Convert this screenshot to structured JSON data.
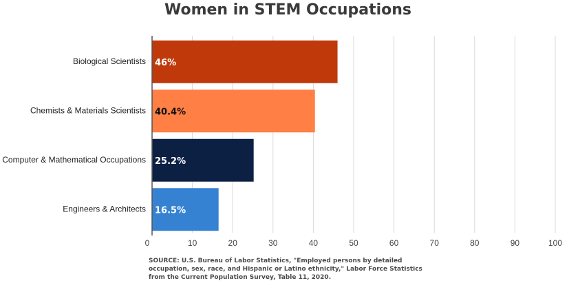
{
  "chart_data": {
    "type": "bar",
    "orientation": "horizontal",
    "title": "Women in STEM Occupations",
    "categories": [
      "Biological Scientists",
      "Chemists & Materials Scientists",
      "Computer & Mathematical Occupations",
      "Engineers & Architects"
    ],
    "values": [
      46,
      40.4,
      25.2,
      16.5
    ],
    "value_labels": [
      "46%",
      "40.4%",
      "25.2%",
      "16.5%"
    ],
    "bar_colors": [
      "#c0390b",
      "#ff7f45",
      "#0c2044",
      "#3582d3"
    ],
    "value_label_colors": [
      "#ffffff",
      "#111111",
      "#ffffff",
      "#ffffff"
    ],
    "x_ticks": [
      "0",
      "10",
      "20",
      "30",
      "40",
      "50",
      "60",
      "70",
      "80",
      "90",
      "100"
    ],
    "xlim": [
      0,
      100
    ],
    "grid": true,
    "source": "SOURCE: U.S. Bureau of Labor Statistics, \"Employed persons by detailed occupation, sex, race, and Hispanic or Latino ethnicity,\" Labor Force Statistics from the Current Population Survey, Table 11, 2020."
  }
}
